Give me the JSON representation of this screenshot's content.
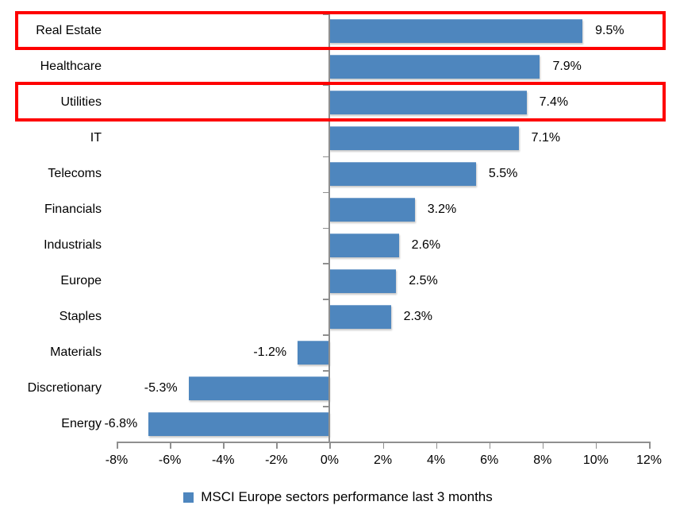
{
  "chart_data": {
    "type": "bar",
    "orientation": "horizontal",
    "title": "",
    "categories": [
      "Real Estate",
      "Healthcare",
      "Utilities",
      "IT",
      "Telecoms",
      "Financials",
      "Industrials",
      "Europe",
      "Staples",
      "Materials",
      "Discretionary",
      "Energy"
    ],
    "values": [
      9.5,
      7.9,
      7.4,
      7.1,
      5.5,
      3.2,
      2.6,
      2.5,
      2.3,
      -1.2,
      -5.3,
      -6.8
    ],
    "value_labels": [
      "9.5%",
      "7.9%",
      "7.4%",
      "7.1%",
      "5.5%",
      "3.2%",
      "2.6%",
      "2.5%",
      "2.3%",
      "-1.2%",
      "-5.3%",
      "-6.8%"
    ],
    "series_name": "MSCI Europe sectors performance last 3 months",
    "xlim": [
      -8,
      12
    ],
    "x_tick_values": [
      -8,
      -6,
      -4,
      -2,
      0,
      2,
      4,
      6,
      8,
      10,
      12
    ],
    "x_tick_labels": [
      "-8%",
      "-6%",
      "-4%",
      "-2%",
      "0%",
      "2%",
      "4%",
      "6%",
      "8%",
      "10%",
      "12%"
    ],
    "grid": false,
    "legend_position": "bottom-center",
    "bar_color": "#4e86be",
    "axis_color": "#8f8f8f",
    "highlight_color": "#fe0000",
    "highlighted_categories": [
      "Real Estate",
      "Utilities"
    ]
  }
}
